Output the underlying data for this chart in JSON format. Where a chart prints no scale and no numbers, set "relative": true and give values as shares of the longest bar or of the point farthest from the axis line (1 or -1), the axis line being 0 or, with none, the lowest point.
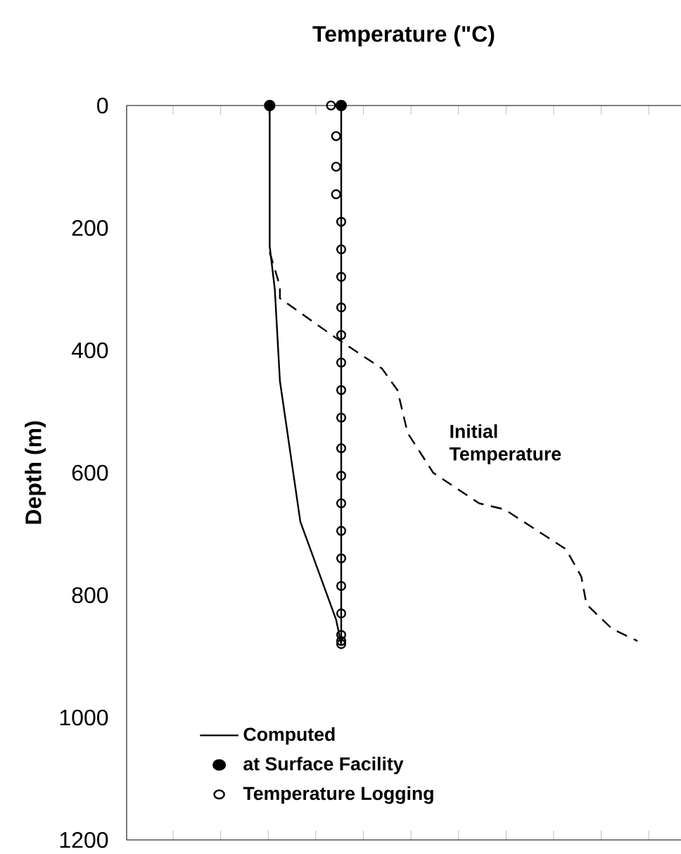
{
  "chart_data": {
    "type": "line",
    "title": "Temperature (\"C)",
    "ylabel": "Depth (m)",
    "orientation": "horizontal",
    "relative": true,
    "ylim": [
      1200,
      0
    ],
    "yticks": [
      0,
      200,
      400,
      600,
      800,
      1000,
      1200
    ],
    "tick_labels": "y",
    "legend": "bottom left",
    "annotations": [
      "Initial Temperature"
    ],
    "series": [
      {
        "type": "line",
        "color": "#000000",
        "line_style": "dashed",
        "x": [
          240,
          295,
          315,
          380,
          430,
          465,
          535,
          600,
          650,
          660,
          725,
          770,
          815,
          855,
          875
        ],
        "values": [
          0.28,
          0.3,
          0.3,
          0.41,
          0.5,
          0.53,
          0.55,
          0.6,
          0.69,
          0.74,
          0.86,
          0.89,
          0.9,
          0.95,
          1.0
        ]
      },
      {
        "type": "line",
        "name": "Computed",
        "color": "#000000",
        "line_style": "solid",
        "x": [
          0,
          880
        ],
        "values": [
          0.42,
          0.42
        ]
      },
      {
        "type": "line",
        "color": "#000000",
        "line_style": "solid",
        "x": [
          0,
          230,
          300,
          450,
          680,
          840,
          880
        ],
        "values": [
          0.28,
          0.28,
          0.29,
          0.3,
          0.34,
          0.41,
          0.42
        ]
      },
      {
        "type": "scatter",
        "name": "at Surface Facility",
        "color": "#000000",
        "marker": "circle",
        "x": [
          0,
          0
        ],
        "values": [
          0.28,
          0.42
        ]
      },
      {
        "type": "scatter",
        "name": "Temperature Logging",
        "color": "#000000",
        "x": [
          0,
          50,
          100,
          145,
          190,
          235,
          280,
          330,
          375,
          420,
          465,
          510,
          560,
          605,
          650,
          695,
          740,
          785,
          830,
          865,
          875,
          880
        ],
        "values": [
          0.4,
          0.41,
          0.41,
          0.41,
          0.42,
          0.42,
          0.42,
          0.42,
          0.42,
          0.42,
          0.42,
          0.42,
          0.42,
          0.42,
          0.42,
          0.42,
          0.42,
          0.42,
          0.42,
          0.42,
          0.42,
          0.42
        ]
      }
    ]
  }
}
